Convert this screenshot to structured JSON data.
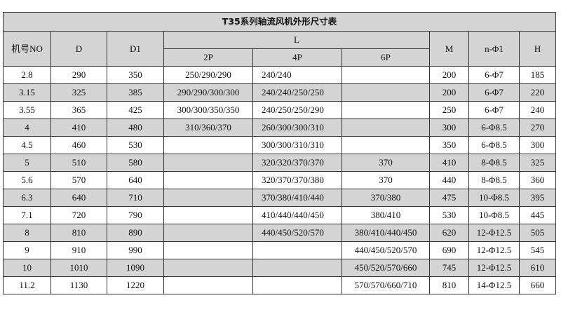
{
  "title": "T35系列轴流风机外形尺寸表",
  "headers": {
    "no": "机号NO",
    "d": "D",
    "d1": "D1",
    "l": "L",
    "p2": "2P",
    "p4": "4P",
    "p6": "6P",
    "m": "M",
    "n_phi": "n-Φ1",
    "h": "H"
  },
  "rows": [
    [
      "2.8",
      "290",
      "350",
      "250/290/290",
      "240/240",
      "",
      "200",
      "6-Φ7",
      "185"
    ],
    [
      "3.15",
      "325",
      "385",
      "290/290/300/300",
      "240/240/250/250",
      "",
      "200",
      "6-Φ7",
      "220"
    ],
    [
      "3.55",
      "365",
      "425",
      "300/300/350/350",
      "240/250/250/290",
      "",
      "250",
      "6-Φ7",
      "240"
    ],
    [
      "4",
      "410",
      "480",
      "310/360/370",
      "260/300/300/310",
      "",
      "300",
      "6-Φ8.5",
      "270"
    ],
    [
      "4.5",
      "460",
      "530",
      "",
      "300/300/310/310",
      "",
      "350",
      "6-Φ8.5",
      "300"
    ],
    [
      "5",
      "510",
      "580",
      "",
      "320/320/370/370",
      "370",
      "410",
      "8-Φ8.5",
      "325"
    ],
    [
      "5.6",
      "570",
      "640",
      "",
      "320/370/370/380",
      "370",
      "440",
      "8-Φ8.5",
      "360"
    ],
    [
      "6.3",
      "640",
      "710",
      "",
      "370/380/410/440",
      "370/380",
      "475",
      "10-Φ8.5",
      "395"
    ],
    [
      "7.1",
      "720",
      "790",
      "",
      "410/440/440/450",
      "380/410",
      "530",
      "10-Φ8.5",
      "445"
    ],
    [
      "8",
      "810",
      "890",
      "",
      "440/450/520/570",
      "380/410/440/450",
      "620",
      "12-Φ12.5",
      "505"
    ],
    [
      "9",
      "910",
      "990",
      "",
      "",
      "440/450/520/570",
      "690",
      "12-Φ12.5",
      "545"
    ],
    [
      "10",
      "1010",
      "1090",
      "",
      "",
      "450/520/570/660",
      "745",
      "12-Φ12.5",
      "610"
    ],
    [
      "11.2",
      "1130",
      "1220",
      "",
      "",
      "570/570/660/710",
      "810",
      "14-Φ12.5",
      "660"
    ]
  ],
  "colors": {
    "header_bg": "#d4d4d4",
    "border": "#333333"
  }
}
